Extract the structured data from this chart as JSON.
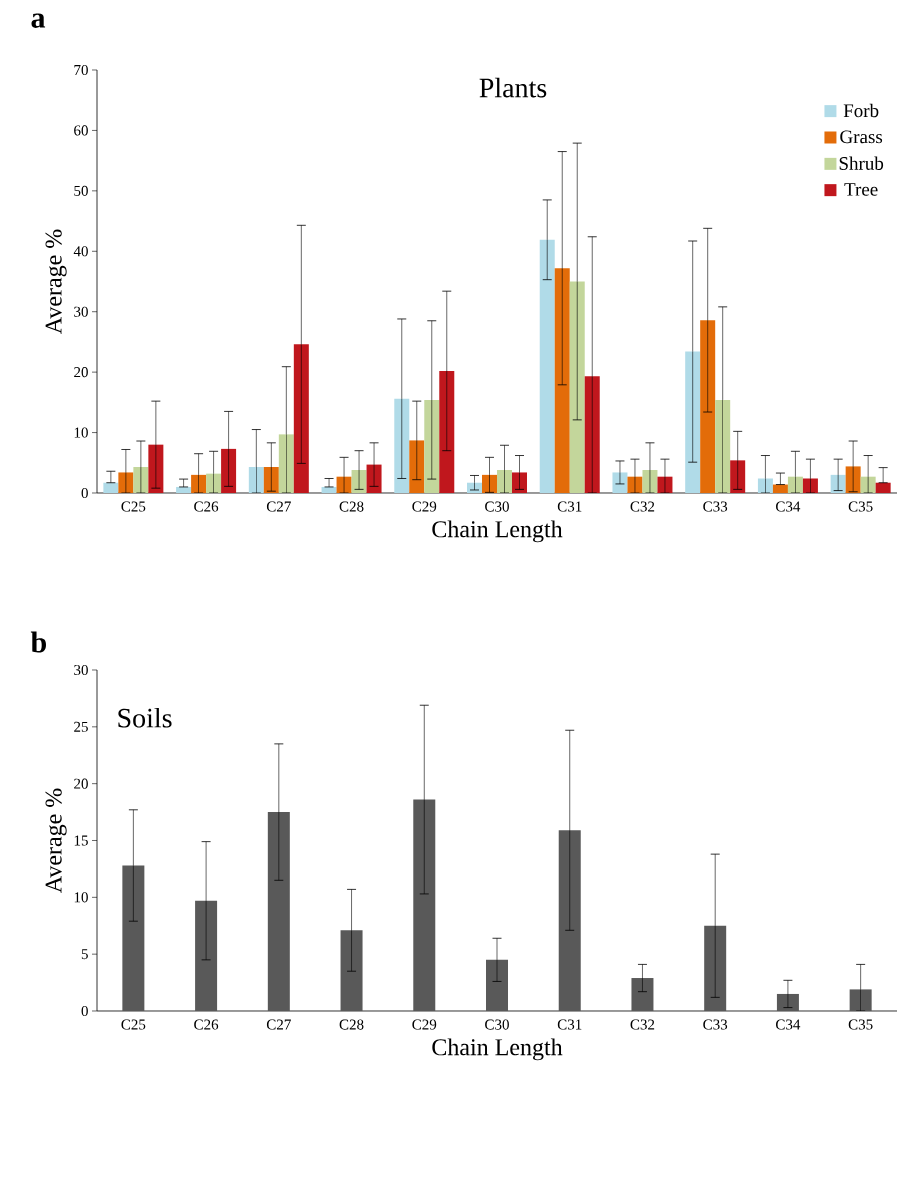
{
  "chart_data": [
    {
      "type": "bar",
      "title": "Plants",
      "annotations": [
        "a"
      ],
      "xlabel": "Chain Length",
      "ylabel": "Average %",
      "categories": [
        "C25",
        "C26",
        "C27",
        "C28",
        "C29",
        "C30",
        "C31",
        "C32",
        "C33",
        "C34",
        "C35"
      ],
      "series": [
        {
          "name": "Forb",
          "color": "#b0dbe8",
          "values": [
            1.7,
            1.0,
            4.3,
            1.0,
            15.6,
            1.7,
            41.9,
            3.4,
            23.4,
            2.4,
            3.0
          ],
          "errors": [
            [
              1.7,
              3.6
            ],
            [
              1.0,
              2.3
            ],
            [
              0,
              10.5
            ],
            [
              1.0,
              2.4
            ],
            13.2,
            1.2,
            6.6,
            1.9,
            18.3,
            [
              0,
              6.2
            ],
            2.6
          ]
        },
        {
          "name": "Grass",
          "color": "#e36c09",
          "values": [
            3.4,
            3.0,
            4.3,
            2.7,
            8.7,
            3.0,
            37.2,
            2.7,
            28.6,
            1.4,
            4.4
          ],
          "errors": [
            [
              0,
              7.2
            ],
            [
              0,
              6.5
            ],
            4.0,
            [
              0,
              5.9
            ],
            6.5,
            2.9,
            19.3,
            [
              0,
              5.6
            ],
            15.2,
            [
              1.4,
              3.3
            ],
            4.2
          ]
        },
        {
          "name": "Shrub",
          "color": "#c3d69b",
          "values": [
            4.3,
            3.2,
            9.7,
            3.8,
            15.4,
            3.8,
            35.0,
            3.8,
            15.4,
            2.7,
            2.7
          ],
          "errors": [
            4.3,
            [
              0,
              6.9
            ],
            [
              0,
              20.9
            ],
            3.2,
            13.1,
            [
              0,
              7.9
            ],
            22.9,
            [
              0,
              8.3
            ],
            15.4,
            [
              0,
              6.9
            ],
            [
              0,
              6.2
            ]
          ]
        },
        {
          "name": "Tree",
          "color": "#c0171d",
          "values": [
            8.0,
            7.3,
            24.6,
            4.7,
            20.2,
            3.4,
            19.3,
            2.7,
            5.4,
            2.4,
            1.7
          ],
          "errors": [
            7.2,
            6.2,
            19.7,
            3.6,
            13.2,
            2.8,
            [
              0,
              42.4
            ],
            [
              0,
              5.6
            ],
            4.8,
            [
              0,
              5.6
            ],
            [
              1.7,
              4.2
            ]
          ]
        }
      ],
      "ylim": [
        0,
        70
      ],
      "yticks": [
        0,
        10,
        20,
        30,
        40,
        50,
        60,
        70
      ],
      "legend": "top right"
    },
    {
      "type": "bar",
      "title": "Soils",
      "annotations": [
        "b"
      ],
      "xlabel": "Chain Length",
      "ylabel": "Average %",
      "categories": [
        "C25",
        "C26",
        "C27",
        "C28",
        "C29",
        "C30",
        "C31",
        "C32",
        "C33",
        "C34",
        "C35"
      ],
      "values": [
        12.8,
        9.7,
        17.5,
        7.1,
        18.6,
        4.5,
        15.9,
        2.9,
        7.5,
        1.5,
        1.9
      ],
      "color": "#595959",
      "errors": [
        4.9,
        5.2,
        6.0,
        3.6,
        8.3,
        1.9,
        8.8,
        1.2,
        6.3,
        1.2,
        [
          0,
          4.1
        ]
      ],
      "ylim": [
        0,
        30
      ],
      "yticks": [
        0,
        5,
        10,
        15,
        20,
        25,
        30
      ]
    }
  ]
}
